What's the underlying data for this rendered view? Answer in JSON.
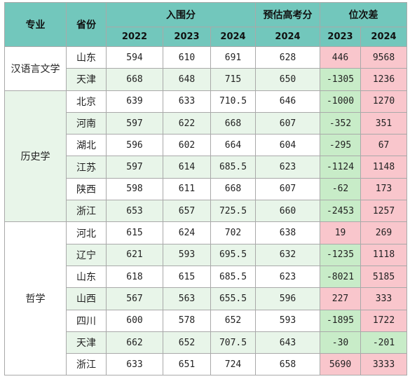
{
  "header": {
    "major": "专业",
    "province": "省份",
    "admission_score": "入围分",
    "estimated_score": "预估高考分",
    "rank_diff": "位次差",
    "years_admission": [
      "2022",
      "2023",
      "2024"
    ],
    "year_estimated": "2024",
    "years_rank": [
      "2023",
      "2024"
    ]
  },
  "groups": [
    {
      "major": "汉语言文学",
      "rows": [
        {
          "province": "山东",
          "s2022": "594",
          "s2023": "610",
          "s2024": "691",
          "est2024": "628",
          "r2023": "446",
          "r2024": "9568"
        },
        {
          "province": "天津",
          "s2022": "668",
          "s2023": "648",
          "s2024": "715",
          "est2024": "650",
          "r2023": "-1305",
          "r2024": "1236"
        }
      ]
    },
    {
      "major": "历史学",
      "rows": [
        {
          "province": "北京",
          "s2022": "639",
          "s2023": "633",
          "s2024": "710.5",
          "est2024": "646",
          "r2023": "-1000",
          "r2024": "1270"
        },
        {
          "province": "河南",
          "s2022": "597",
          "s2023": "622",
          "s2024": "668",
          "est2024": "607",
          "r2023": "-352",
          "r2024": "351"
        },
        {
          "province": "湖北",
          "s2022": "596",
          "s2023": "602",
          "s2024": "664",
          "est2024": "604",
          "r2023": "-295",
          "r2024": "67"
        },
        {
          "province": "江苏",
          "s2022": "597",
          "s2023": "614",
          "s2024": "685.5",
          "est2024": "623",
          "r2023": "-1124",
          "r2024": "1148"
        },
        {
          "province": "陕西",
          "s2022": "598",
          "s2023": "611",
          "s2024": "668",
          "est2024": "607",
          "r2023": "-62",
          "r2024": "173"
        },
        {
          "province": "浙江",
          "s2022": "653",
          "s2023": "657",
          "s2024": "725.5",
          "est2024": "660",
          "r2023": "-2453",
          "r2024": "1257"
        }
      ]
    },
    {
      "major": "哲学",
      "rows": [
        {
          "province": "河北",
          "s2022": "615",
          "s2023": "624",
          "s2024": "702",
          "est2024": "638",
          "r2023": "19",
          "r2024": "269"
        },
        {
          "province": "辽宁",
          "s2022": "621",
          "s2023": "593",
          "s2024": "695.5",
          "est2024": "632",
          "r2023": "-1235",
          "r2024": "1118"
        },
        {
          "province": "山东",
          "s2022": "618",
          "s2023": "615",
          "s2024": "685.5",
          "est2024": "623",
          "r2023": "-8021",
          "r2024": "5185"
        },
        {
          "province": "山西",
          "s2022": "567",
          "s2023": "563",
          "s2024": "655.5",
          "est2024": "596",
          "r2023": "227",
          "r2024": "333"
        },
        {
          "province": "四川",
          "s2022": "600",
          "s2023": "578",
          "s2024": "652",
          "est2024": "593",
          "r2023": "-1895",
          "r2024": "1722"
        },
        {
          "province": "天津",
          "s2022": "662",
          "s2023": "652",
          "s2024": "707.5",
          "est2024": "643",
          "r2023": "-30",
          "r2024": "-201"
        },
        {
          "province": "浙江",
          "s2022": "633",
          "s2023": "651",
          "s2024": "724",
          "est2024": "658",
          "r2023": "5690",
          "r2024": "3333"
        }
      ]
    }
  ],
  "colors": {
    "header_bg": "#72c7bc",
    "row_alt_bg": "#e8f5e9",
    "positive_rank_bg": "#f9c6cc",
    "negative_rank_bg": "#c8ecc8"
  }
}
